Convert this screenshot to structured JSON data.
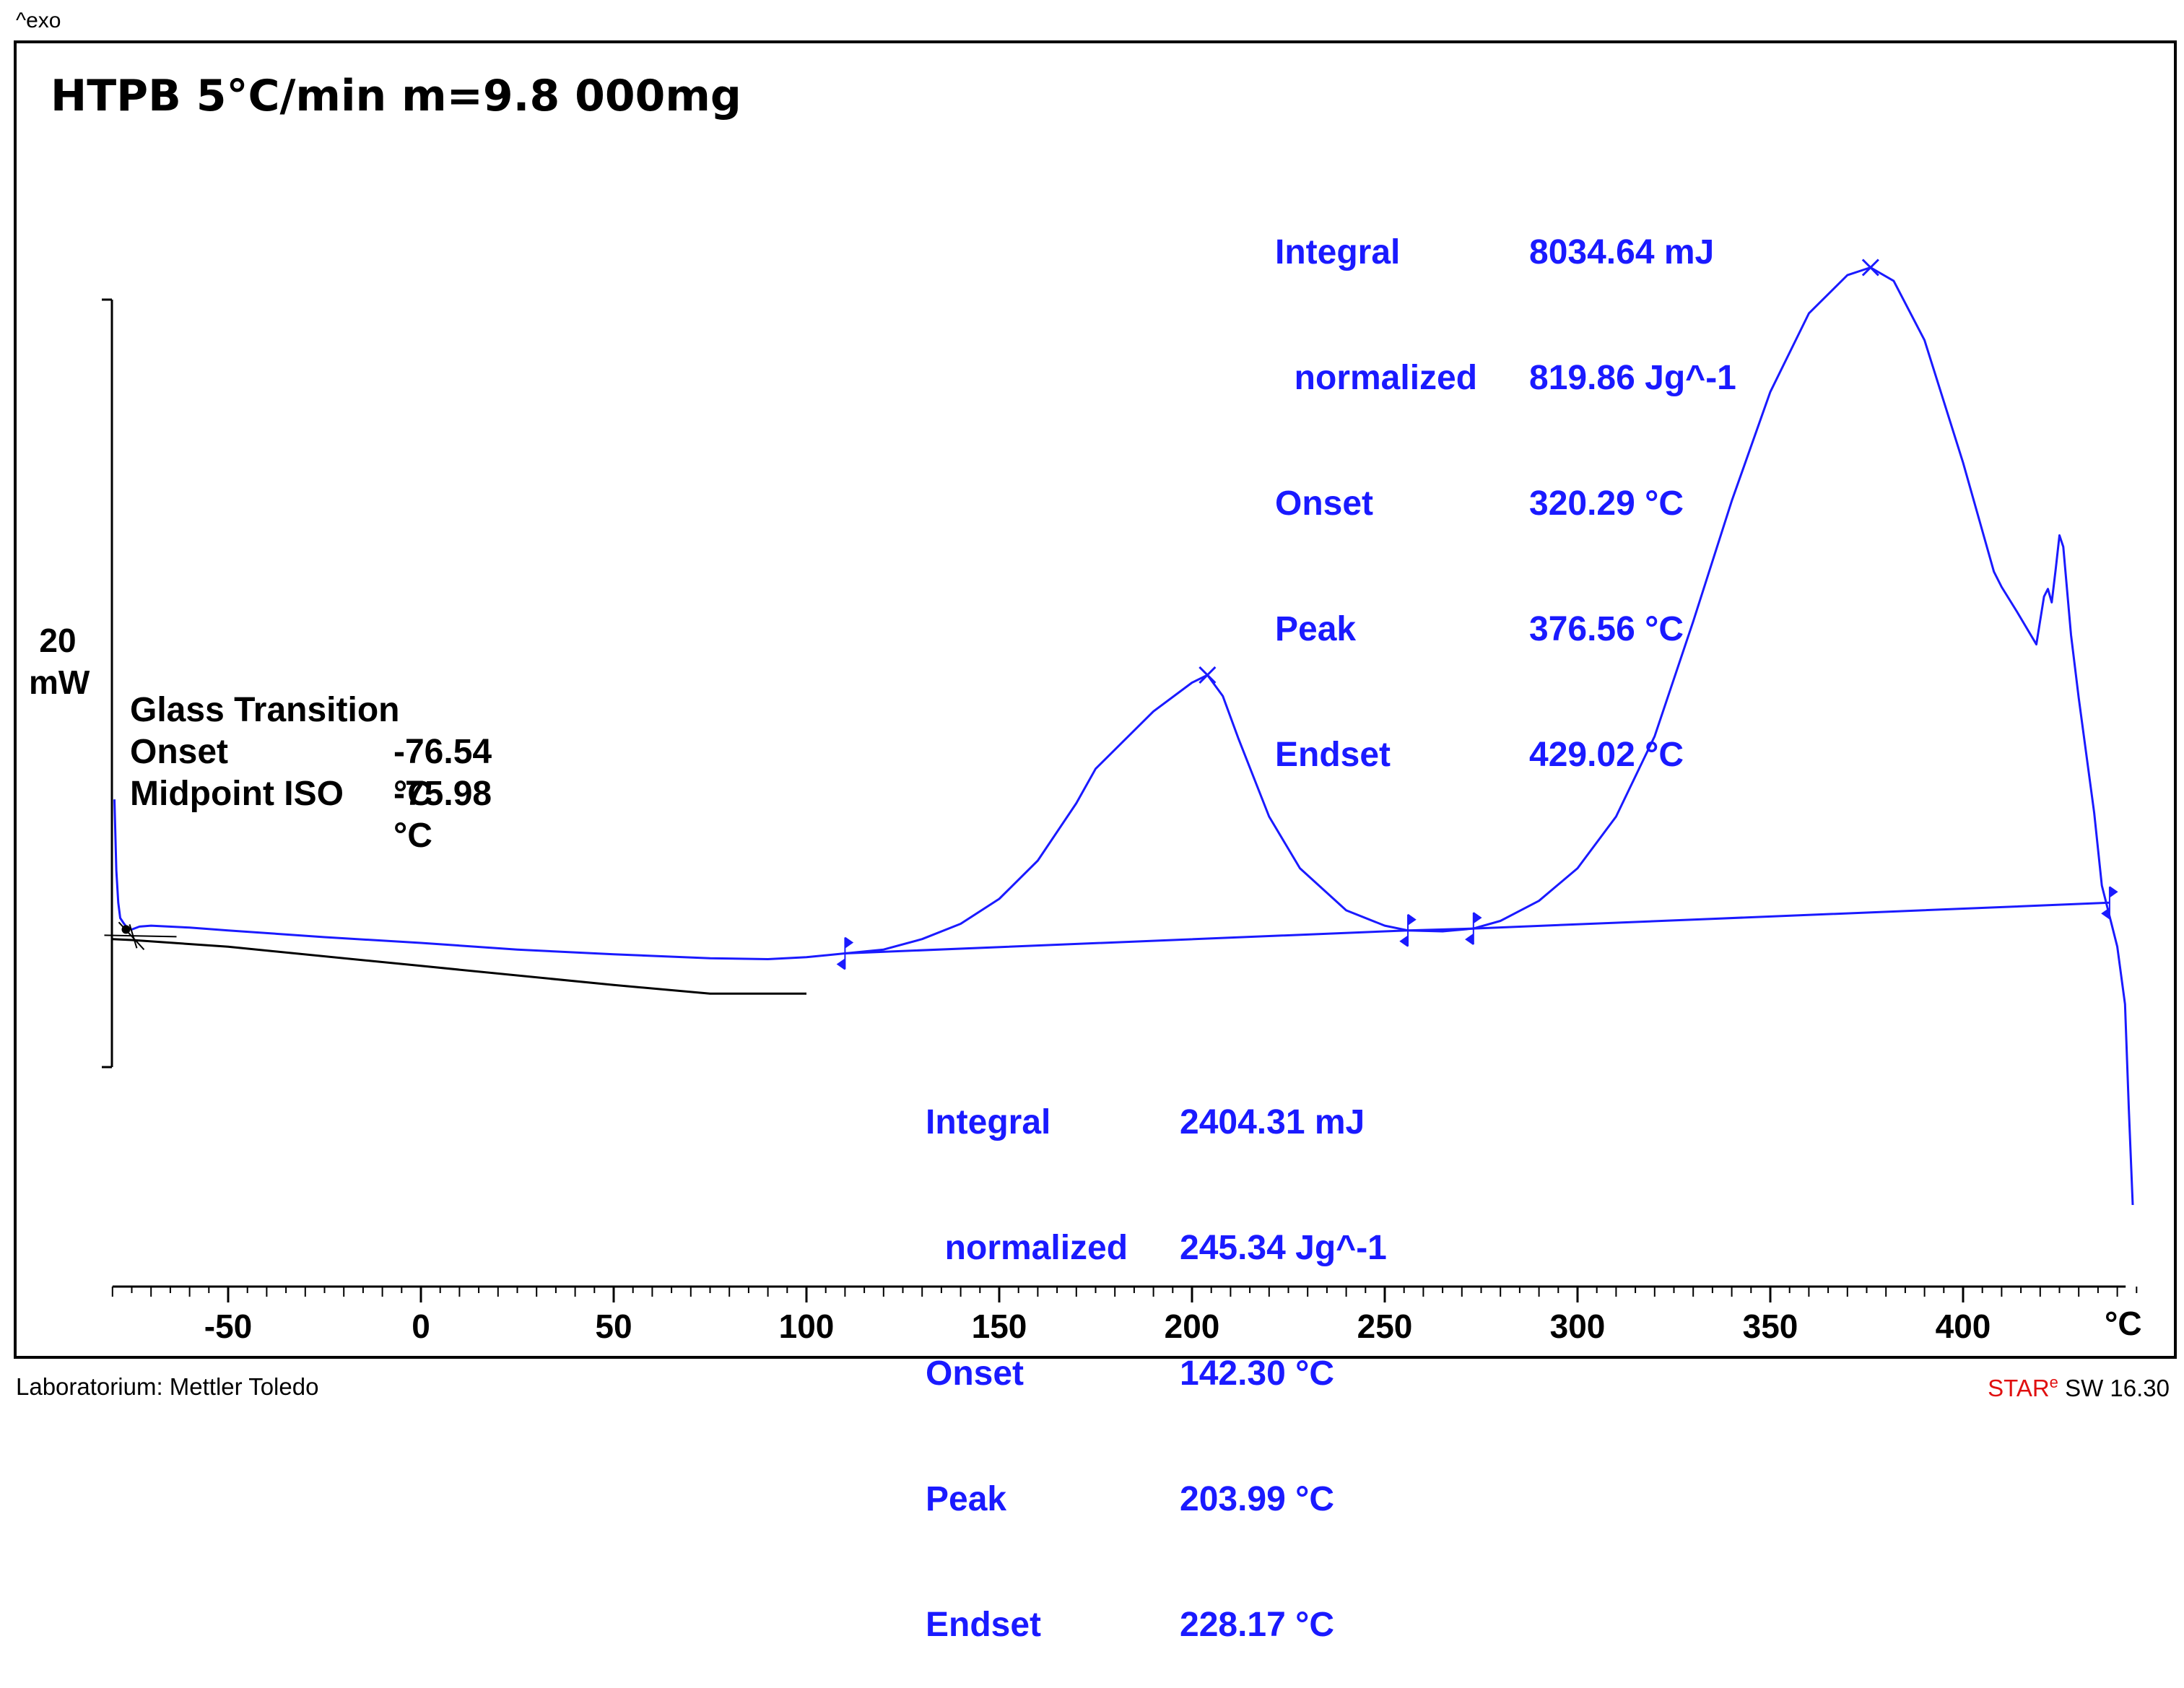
{
  "header": {
    "exo_label": "^exo",
    "sample_title": "HTPB 5°C/min m=9.8 000mg"
  },
  "footer": {
    "lab": "Laboratorium: Mettler Toledo",
    "software_brand": "STAR",
    "software_sup": "e",
    "software_version": " SW 16.30"
  },
  "chart_data": {
    "type": "line",
    "title": "HTPB 5°C/min m=9.8 000mg",
    "xlabel": "°C",
    "ylabel": "mW",
    "xlim": [
      -80,
      430
    ],
    "x_ticks": [
      -50,
      0,
      50,
      100,
      150,
      200,
      250,
      300,
      350,
      400
    ],
    "x_tick_labels": [
      "-50",
      "0",
      "50",
      "100",
      "150",
      "200",
      "250",
      "300",
      "350",
      "400"
    ],
    "y_scale_bar": {
      "value": 20,
      "label": "20",
      "unit": "mW"
    },
    "grid": false,
    "series": [
      {
        "name": "DSC heat flow (blue)",
        "color": "#1a1aff",
        "points": [
          [
            -79.5,
            7.2
          ],
          [
            -79,
            3.5
          ],
          [
            -78.5,
            1.8
          ],
          [
            -78,
            1.0
          ],
          [
            -77,
            0.7
          ],
          [
            -76,
            0.45
          ],
          [
            -75,
            0.4
          ],
          [
            -73,
            0.55
          ],
          [
            -70,
            0.6
          ],
          [
            -60,
            0.5
          ],
          [
            -50,
            0.35
          ],
          [
            -25,
            0
          ],
          [
            0,
            -0.3
          ],
          [
            25,
            -0.65
          ],
          [
            50,
            -0.9
          ],
          [
            75,
            -1.1
          ],
          [
            90,
            -1.15
          ],
          [
            100,
            -1.05
          ],
          [
            110,
            -0.85
          ],
          [
            120,
            -0.65
          ],
          [
            130,
            -0.1
          ],
          [
            140,
            0.7
          ],
          [
            150,
            2.0
          ],
          [
            160,
            4.0
          ],
          [
            170,
            7.0
          ],
          [
            175,
            8.8
          ],
          [
            180,
            9.8
          ],
          [
            190,
            11.8
          ],
          [
            200,
            13.3
          ],
          [
            204,
            13.7
          ],
          [
            208,
            12.6
          ],
          [
            212,
            10.4
          ],
          [
            220,
            6.3
          ],
          [
            228,
            3.6
          ],
          [
            240,
            1.4
          ],
          [
            250,
            0.6
          ],
          [
            256,
            0.35
          ],
          [
            265,
            0.3
          ],
          [
            273,
            0.45
          ],
          [
            280,
            0.85
          ],
          [
            290,
            1.9
          ],
          [
            300,
            3.6
          ],
          [
            310,
            6.3
          ],
          [
            320,
            10.5
          ],
          [
            330,
            16.5
          ],
          [
            340,
            22.8
          ],
          [
            350,
            28.5
          ],
          [
            360,
            32.6
          ],
          [
            370,
            34.6
          ],
          [
            376,
            35.0
          ],
          [
            382,
            34.3
          ],
          [
            390,
            31.2
          ],
          [
            400,
            24.8
          ],
          [
            408,
            19.1
          ],
          [
            410,
            18.3
          ],
          [
            414,
            17.0
          ],
          [
            419,
            15.3
          ],
          [
            421,
            17.8
          ],
          [
            422,
            18.2
          ],
          [
            423,
            17.5
          ],
          [
            424,
            19.2
          ],
          [
            425,
            21.0
          ],
          [
            426,
            20.4
          ],
          [
            428,
            15.8
          ],
          [
            430,
            12.5
          ],
          [
            434,
            6.5
          ],
          [
            436,
            2.7
          ],
          [
            440,
            -0.5
          ],
          [
            442,
            -3.5
          ],
          [
            443,
            -9.0
          ],
          [
            444,
            -14.0
          ]
        ]
      },
      {
        "name": "Baseline (blue)",
        "color": "#1a1aff",
        "points": [
          [
            110,
            -0.85
          ],
          [
            256,
            0.35
          ],
          [
            273,
            0.45
          ],
          [
            438,
            1.8
          ]
        ]
      },
      {
        "name": "Glass transition (black)",
        "color": "#000000",
        "points": [
          [
            -80,
            -0.1
          ],
          [
            -75,
            -0.15
          ],
          [
            -50,
            -0.5
          ],
          [
            0,
            -1.5
          ],
          [
            50,
            -2.5
          ],
          [
            75,
            -2.95
          ],
          [
            80,
            -2.95
          ],
          [
            100,
            -2.95
          ]
        ]
      }
    ],
    "markers": [
      {
        "type": "peak",
        "x": 204,
        "y": 13.7
      },
      {
        "type": "peak",
        "x": 376,
        "y": 35.0
      },
      {
        "type": "limit",
        "x": 110,
        "y": -0.85
      },
      {
        "type": "limit",
        "x": 256,
        "y": 0.35
      },
      {
        "type": "limit",
        "x": 273,
        "y": 0.45
      },
      {
        "type": "limit",
        "x": 438,
        "y": 1.8
      }
    ],
    "annotations": {
      "glass_transition": {
        "title": "Glass Transition",
        "rows": [
          {
            "label": "Onset",
            "value": "-76.54 °C"
          },
          {
            "label": "Midpoint ISO",
            "value": "-75.98 °C"
          }
        ]
      },
      "peak1": {
        "rows": [
          {
            "label": "Integral",
            "value": "2404.31 mJ"
          },
          {
            "label": "  normalized",
            "value": "245.34 Jg^-1"
          },
          {
            "label": "Onset",
            "value": "142.30 °C"
          },
          {
            "label": "Peak",
            "value": "203.99 °C"
          },
          {
            "label": "Endset",
            "value": "228.17 °C"
          }
        ]
      },
      "peak2": {
        "rows": [
          {
            "label": "Integral",
            "value": "8034.64 mJ"
          },
          {
            "label": "  normalized",
            "value": "819.86 Jg^-1"
          },
          {
            "label": "Onset",
            "value": "320.29 °C"
          },
          {
            "label": "Peak",
            "value": "376.56 °C"
          },
          {
            "label": "Endset",
            "value": "429.02 °C"
          }
        ]
      }
    }
  }
}
